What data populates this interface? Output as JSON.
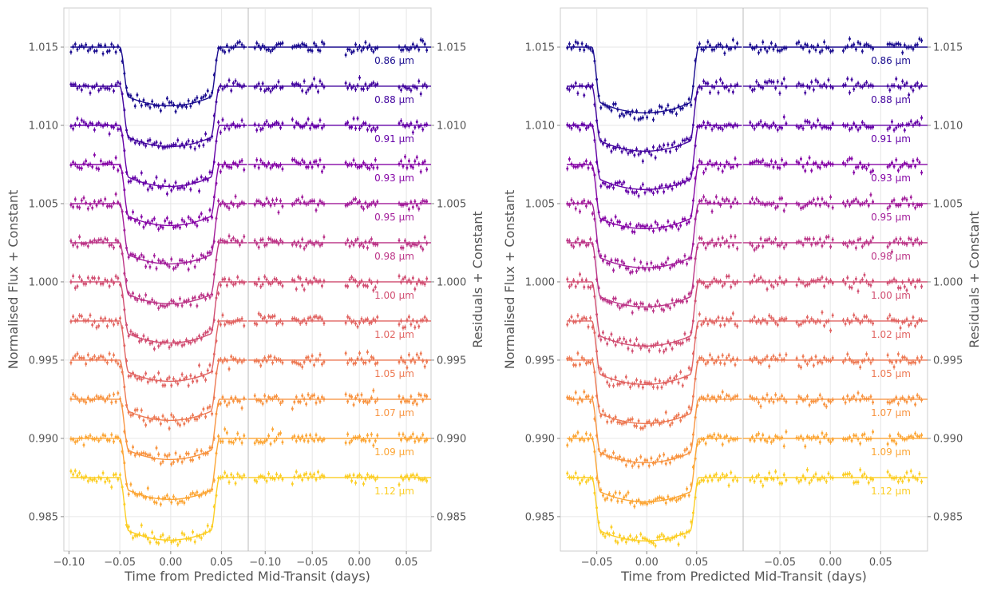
{
  "chart_data": [
    {
      "type": "scatter",
      "title": "",
      "xlabel": "Time from Predicted Mid-Transit (days)",
      "ylabel": "Normalised Flux + Constant",
      "ylabel_right": "Residuals + Constant",
      "grid": true,
      "ylim": [
        0.9828,
        1.0175
      ],
      "yticks": [
        0.985,
        0.99,
        0.995,
        1.0,
        1.005,
        1.01,
        1.015
      ],
      "yticklabels": [
        "0.985",
        "0.990",
        "0.995",
        "1.000",
        "1.005",
        "1.010",
        "1.015"
      ],
      "flux_panel": {
        "xlim": [
          -0.105,
          0.0762
        ],
        "xticks": [
          -0.1,
          -0.05,
          0.0,
          0.05
        ],
        "xticklabels": [
          "−0.10",
          "−0.05",
          "0.00",
          "0.05"
        ],
        "ingress_start": -0.05,
        "egress_end": 0.048,
        "gap": [
          -0.026,
          0.035
        ],
        "noise": 0.0002,
        "seed": 3
      },
      "residual_panel": {
        "xlim": [
          -0.118,
          0.0762
        ],
        "xticks": [
          -0.1,
          -0.05,
          0.0,
          0.05
        ],
        "xticklabels": [
          "−0.10",
          "−0.05",
          "0.00",
          "0.05"
        ],
        "gaps": [
          [
            -0.08,
            -0.072
          ],
          [
            -0.037,
            -0.016
          ],
          [
            0.021,
            0.041
          ]
        ],
        "noise": 0.0002,
        "seed": 11
      },
      "series": [
        {
          "name": "0.86 μm",
          "baseline": 1.015,
          "depth": 0.00375,
          "color": "#1a0c8f"
        },
        {
          "name": "0.88 μm",
          "baseline": 1.0125,
          "depth": 0.00385,
          "color": "#42049e"
        },
        {
          "name": "0.91 μm",
          "baseline": 1.01,
          "depth": 0.0039,
          "color": "#6400a7"
        },
        {
          "name": "0.93 μm",
          "baseline": 1.0075,
          "depth": 0.0039,
          "color": "#8606a6"
        },
        {
          "name": "0.95 μm",
          "baseline": 1.005,
          "depth": 0.00385,
          "color": "#a21d9a"
        },
        {
          "name": "0.98 μm",
          "baseline": 1.0025,
          "depth": 0.0039,
          "color": "#bc3587"
        },
        {
          "name": "1.00 μm",
          "baseline": 1.0,
          "depth": 0.0039,
          "color": "#d14e72"
        },
        {
          "name": "1.02 μm",
          "baseline": 0.9975,
          "depth": 0.00385,
          "color": "#e16462"
        },
        {
          "name": "1.05 μm",
          "baseline": 0.995,
          "depth": 0.00385,
          "color": "#ed7953"
        },
        {
          "name": "1.07 μm",
          "baseline": 0.9925,
          "depth": 0.00385,
          "color": "#f89441"
        },
        {
          "name": "1.09 μm",
          "baseline": 0.99,
          "depth": 0.0039,
          "color": "#fca636"
        },
        {
          "name": "1.12 μm",
          "baseline": 0.9875,
          "depth": 0.004,
          "color": "#fcce25"
        }
      ]
    },
    {
      "type": "scatter",
      "title": "",
      "xlabel": "Time from Predicted Mid-Transit (days)",
      "ylabel": "Normalised Flux + Constant",
      "ylabel_right": "Residuals + Constant",
      "grid": true,
      "ylim": [
        0.9828,
        1.0175
      ],
      "yticks": [
        0.985,
        0.99,
        0.995,
        1.0,
        1.005,
        1.01,
        1.015
      ],
      "yticklabels": [
        "0.985",
        "0.990",
        "0.995",
        "1.000",
        "1.005",
        "1.010",
        "1.015"
      ],
      "flux_panel": {
        "xlim": [
          -0.0865,
          0.0965
        ],
        "xticks": [
          -0.05,
          0.0,
          0.05
        ],
        "xticklabels": [
          "−0.05",
          "0.00",
          "0.05"
        ],
        "ingress_start": -0.055,
        "egress_end": 0.052,
        "gap": [
          -0.035,
          0.018
        ],
        "noise": 0.0002,
        "seed": 5
      },
      "residual_panel": {
        "xlim": [
          -0.0865,
          0.0965
        ],
        "xticks": [
          -0.05,
          0.0,
          0.05
        ],
        "xticklabels": [
          "−0.05",
          "0.00",
          "0.05"
        ],
        "gaps": [
          [
            -0.043,
            -0.035
          ],
          [
            0.003,
            0.011
          ],
          [
            0.044,
            0.056
          ]
        ],
        "noise": 0.0002,
        "seed": 17
      },
      "series": [
        {
          "name": "0.86 μm",
          "baseline": 1.015,
          "depth": 0.0042,
          "color": "#1a0c8f"
        },
        {
          "name": "0.88 μm",
          "baseline": 1.0125,
          "depth": 0.00415,
          "color": "#42049e"
        },
        {
          "name": "0.91 μm",
          "baseline": 1.01,
          "depth": 0.0041,
          "color": "#6400a7"
        },
        {
          "name": "0.93 μm",
          "baseline": 1.0075,
          "depth": 0.0041,
          "color": "#8606a6"
        },
        {
          "name": "0.95 μm",
          "baseline": 1.005,
          "depth": 0.0041,
          "color": "#a21d9a"
        },
        {
          "name": "0.98 μm",
          "baseline": 1.0025,
          "depth": 0.0041,
          "color": "#bc3587"
        },
        {
          "name": "1.00 μm",
          "baseline": 1.0,
          "depth": 0.0041,
          "color": "#d14e72"
        },
        {
          "name": "1.02 μm",
          "baseline": 0.9975,
          "depth": 0.00405,
          "color": "#e16462"
        },
        {
          "name": "1.05 μm",
          "baseline": 0.995,
          "depth": 0.00405,
          "color": "#ed7953"
        },
        {
          "name": "1.07 μm",
          "baseline": 0.9925,
          "depth": 0.00405,
          "color": "#f89441"
        },
        {
          "name": "1.09 μm",
          "baseline": 0.99,
          "depth": 0.00405,
          "color": "#fca636"
        },
        {
          "name": "1.12 μm",
          "baseline": 0.9875,
          "depth": 0.00405,
          "color": "#fcce25"
        }
      ]
    }
  ]
}
